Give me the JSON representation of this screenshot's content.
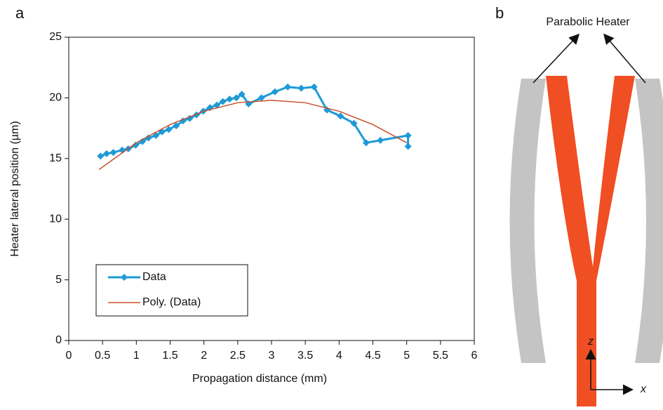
{
  "figure": {
    "panel_a": "a",
    "panel_b": "b"
  },
  "chart_data": {
    "type": "line",
    "x_label": "Propagation distance (mm)",
    "y_label": "Heater lateral position (µm)",
    "xlim": [
      0,
      6
    ],
    "xticks": [
      0,
      0.5,
      1,
      1.5,
      2,
      2.5,
      3,
      3.5,
      4,
      4.5,
      5,
      5.5,
      6
    ],
    "ylim": [
      0,
      25
    ],
    "yticks": [
      0,
      5,
      10,
      15,
      20,
      25
    ],
    "legend": "lower-left",
    "series": [
      {
        "name": "Data",
        "color": "#1e9ad6",
        "markers": true,
        "x": [
          0.47,
          0.56,
          0.66,
          0.79,
          0.88,
          0.99,
          1.09,
          1.18,
          1.29,
          1.38,
          1.48,
          1.59,
          1.69,
          1.79,
          1.89,
          1.99,
          2.09,
          2.19,
          2.28,
          2.38,
          2.48,
          2.56,
          2.66,
          2.85,
          3.05,
          3.24,
          3.44,
          3.63,
          3.82,
          4.02,
          4.22,
          4.4,
          4.61,
          5.02,
          5.02
        ],
        "values": [
          15.2,
          15.4,
          15.5,
          15.7,
          15.8,
          16.1,
          16.4,
          16.7,
          16.9,
          17.2,
          17.4,
          17.7,
          18.1,
          18.3,
          18.6,
          18.9,
          19.2,
          19.4,
          19.7,
          19.9,
          20.0,
          20.3,
          19.5,
          20.0,
          20.5,
          20.9,
          20.8,
          20.9,
          19.0,
          18.5,
          17.9,
          16.3,
          16.5,
          16.9,
          16.0
        ]
      },
      {
        "name": "Poly. (Data)",
        "color": "#c8502a",
        "markers": false,
        "x": [
          0.45,
          1,
          1.5,
          2,
          2.5,
          3,
          3.5,
          4,
          4.5,
          5
        ],
        "values": [
          14.1,
          16.3,
          17.8,
          18.9,
          19.6,
          19.8,
          19.6,
          18.9,
          17.8,
          16.3
        ]
      }
    ]
  },
  "diagram": {
    "heater_label": "Parabolic Heater",
    "z_axis": "z",
    "x_axis": "x"
  }
}
